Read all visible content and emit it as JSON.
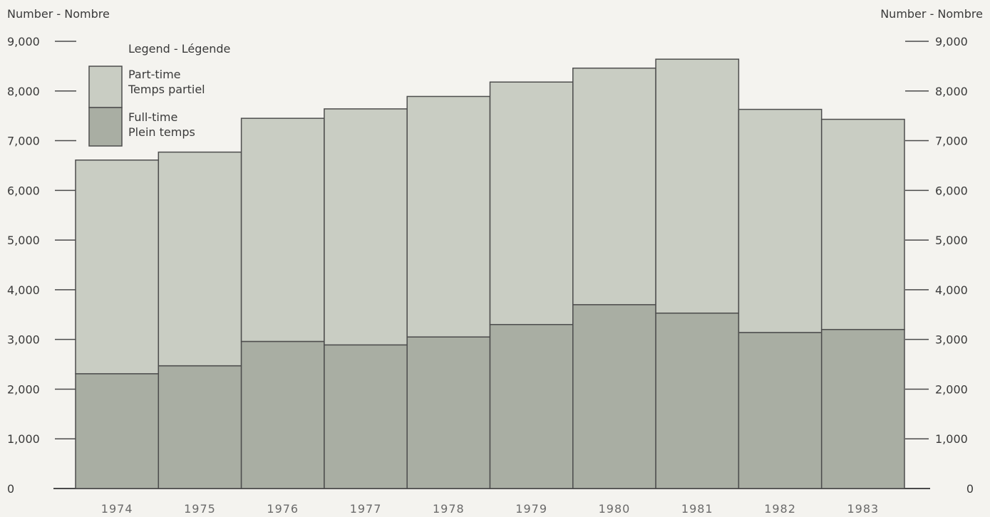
{
  "chart_data": {
    "type": "bar",
    "stacked": true,
    "ylabel_left": "Number - Nombre",
    "ylabel_right": "Number - Nombre",
    "ylim": [
      0,
      9000
    ],
    "yticks": [
      0,
      1000,
      2000,
      3000,
      4000,
      5000,
      6000,
      7000,
      8000,
      9000
    ],
    "ytick_labels": [
      "0",
      "1,000",
      "2,000",
      "3,000",
      "4,000",
      "5,000",
      "6,000",
      "7,000",
      "8,000",
      "9,000"
    ],
    "categories": [
      "1974",
      "1975",
      "1976",
      "1977",
      "1978",
      "1979",
      "1980",
      "1981",
      "1982",
      "1983"
    ],
    "legend_title": "Legend - Légende",
    "legend_position": "top-left",
    "grid": false,
    "series": [
      {
        "name": "Full-time",
        "name_line2": "Plein temps",
        "color": "#a9aea3",
        "values": [
          2310,
          2470,
          2960,
          2890,
          3050,
          3300,
          3700,
          3530,
          3140,
          3200
        ]
      },
      {
        "name": "Part-time",
        "name_line2": "Temps partiel",
        "color": "#c9cdc3",
        "values": [
          4300,
          4300,
          4490,
          4750,
          4840,
          4880,
          4760,
          5110,
          4490,
          4230
        ]
      }
    ],
    "colors": {
      "axis": "#4a4a4a",
      "background": "#f4f3ef",
      "bar_stroke": "#4d4d4d"
    }
  }
}
